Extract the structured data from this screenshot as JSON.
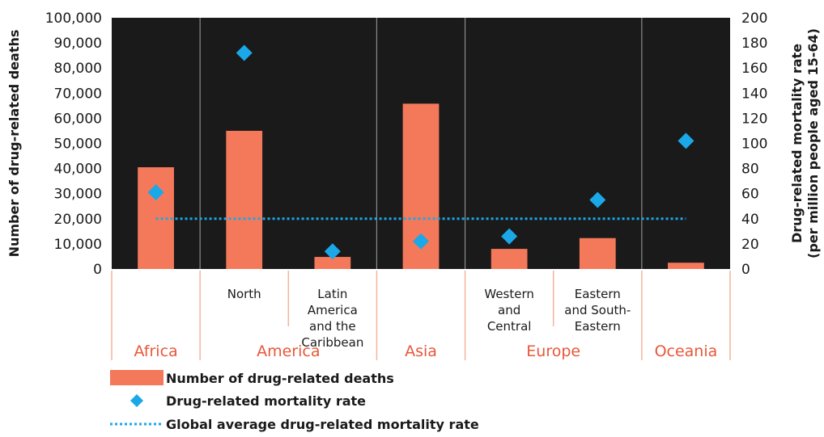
{
  "colors": {
    "plot_bg": "#1a1a1a",
    "bar": "#f4795b",
    "marker": "#1ba8e8",
    "dotted": "#1ba8e8",
    "separator": "#8c8c8c",
    "region_text": "#e8573a",
    "bracket": "#f4b49c"
  },
  "chart_data": {
    "type": "bar",
    "y_left": {
      "label": "Number of drug-related deaths",
      "range": [
        0,
        100000
      ],
      "ticks": [
        "0",
        "10,000",
        "20,000",
        "30,000",
        "40,000",
        "50,000",
        "60,000",
        "70,000",
        "80,000",
        "90,000",
        "100,000"
      ]
    },
    "y_right": {
      "label_line1": "Drug-related mortality rate",
      "label_line2": "(per million people aged 15-64)",
      "range": [
        0,
        200
      ],
      "ticks": [
        "0",
        "20",
        "40",
        "60",
        "80",
        "100",
        "120",
        "140",
        "160",
        "180",
        "200"
      ]
    },
    "categories": [
      {
        "region": "Africa",
        "sub": []
      },
      {
        "region": "America",
        "sub": [
          "North"
        ]
      },
      {
        "region": "America",
        "sub": [
          "Latin",
          "America",
          "and the",
          "Caribbean"
        ]
      },
      {
        "region": "Asia",
        "sub": []
      },
      {
        "region": "Europe",
        "sub": [
          "Western",
          "and",
          "Central"
        ]
      },
      {
        "region": "Europe",
        "sub": [
          "Eastern",
          "and South-",
          "Eastern"
        ]
      },
      {
        "region": "Oceania",
        "sub": []
      }
    ],
    "regions": [
      {
        "name": "Africa",
        "span": 1
      },
      {
        "name": "America",
        "span": 2
      },
      {
        "name": "Asia",
        "span": 1
      },
      {
        "name": "Europe",
        "span": 2
      },
      {
        "name": "Oceania",
        "span": 1
      }
    ],
    "series": [
      {
        "name": "Number of drug-related deaths",
        "type": "bar",
        "axis": "left",
        "values": [
          40500,
          55000,
          4800,
          65800,
          8000,
          12300,
          2500
        ]
      },
      {
        "name": "Drug-related mortality rate",
        "type": "scatter",
        "axis": "right",
        "values": [
          61,
          172,
          14,
          22,
          26,
          55,
          102
        ]
      },
      {
        "name": "Global average drug-related mortality rate",
        "type": "line",
        "axis": "right",
        "value": 40
      }
    ],
    "legend_position": "bottom-left",
    "grid": false
  }
}
